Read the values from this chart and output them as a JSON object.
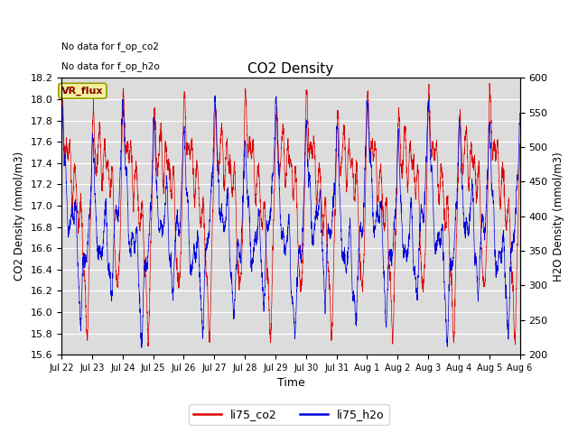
{
  "title": "CO2 Density",
  "xlabel": "Time",
  "ylabel_left": "CO2 Density (mmol/m3)",
  "ylabel_right": "H2O Density (mmol/m3)",
  "annotation_lines": [
    "No data for f_op_co2",
    "No data for f_op_h2o"
  ],
  "vr_flux_label": "VR_flux",
  "ylim_left": [
    15.6,
    18.2
  ],
  "ylim_right": [
    200,
    600
  ],
  "yticks_left": [
    15.6,
    15.8,
    16.0,
    16.2,
    16.4,
    16.6,
    16.8,
    17.0,
    17.2,
    17.4,
    17.6,
    17.8,
    18.0,
    18.2
  ],
  "yticks_right": [
    200,
    250,
    300,
    350,
    400,
    450,
    500,
    550,
    600
  ],
  "color_co2": "#dd0000",
  "color_h2o": "#0000dd",
  "background_color": "#dcdcdc",
  "legend_labels": [
    "li75_co2",
    "li75_h2o"
  ],
  "xticklabels": [
    "Jul 22",
    "Jul 23",
    "Jul 24",
    "Jul 25",
    "Jul 26",
    "Jul 27",
    "Jul 28",
    "Jul 29",
    "Jul 30",
    "Jul 31",
    "Aug 1",
    "Aug 2",
    "Aug 3",
    "Aug 4",
    "Aug 5",
    "Aug 6"
  ],
  "n_points": 3000,
  "seed": 42
}
